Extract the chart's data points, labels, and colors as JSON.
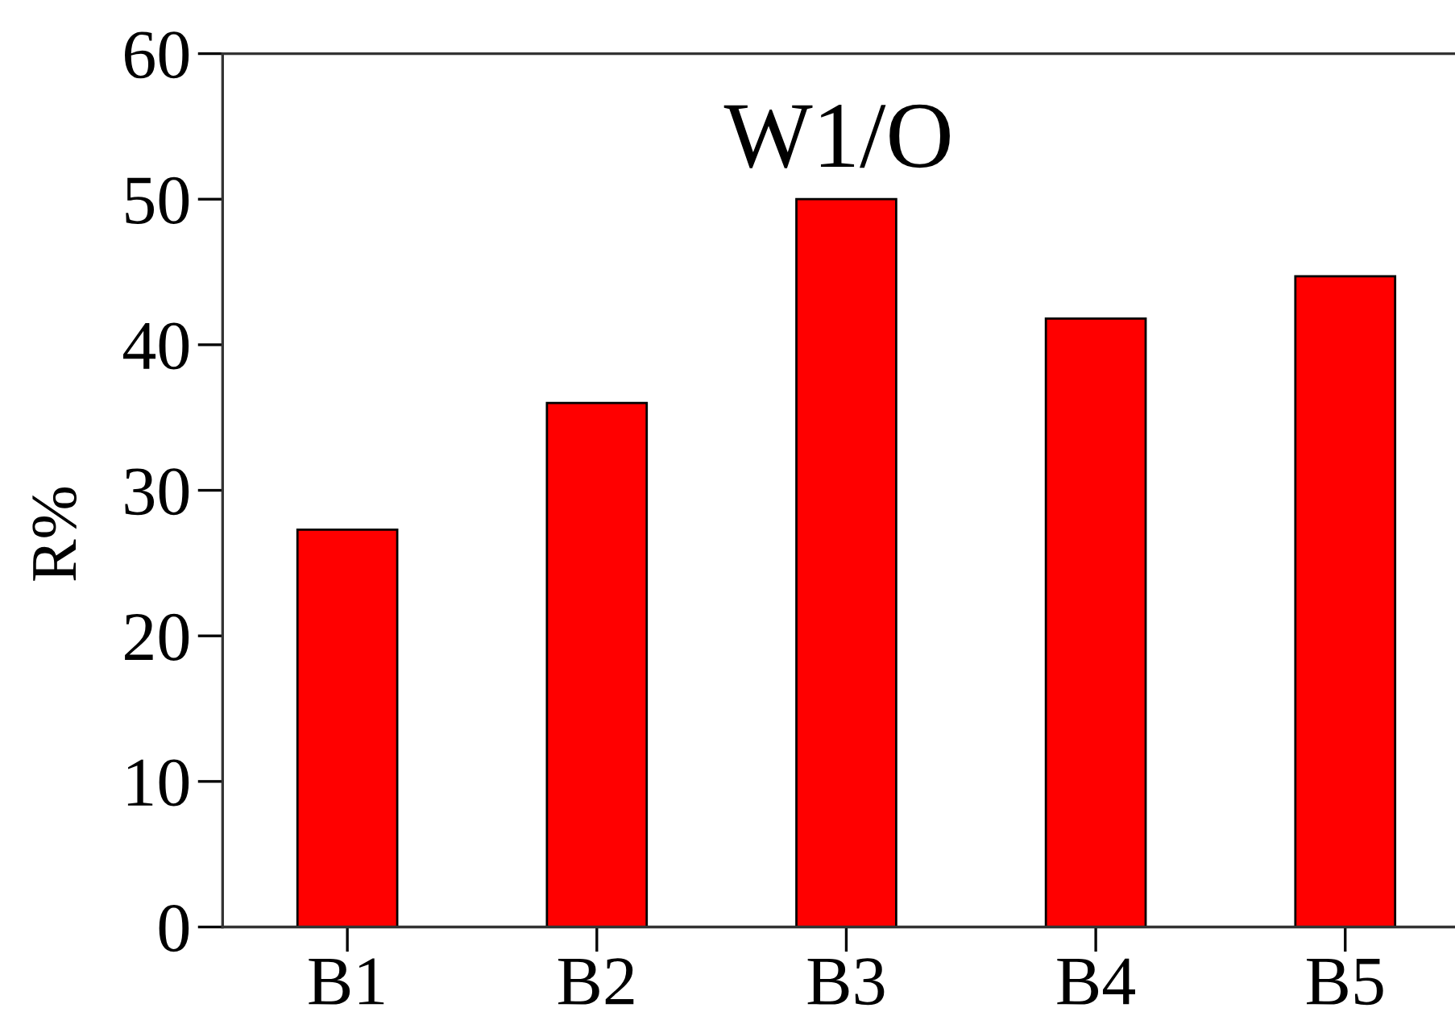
{
  "chart_data": {
    "type": "bar",
    "title": "W1/O",
    "ylabel": "R%",
    "categories": [
      "B1",
      "B2",
      "B3",
      "B4",
      "B5"
    ],
    "values": [
      27.3,
      36.0,
      50.0,
      41.8,
      44.7
    ],
    "color": "#ff0000",
    "ylim": [
      0,
      60
    ],
    "yticks": [
      0,
      10,
      20,
      30,
      40,
      50,
      60
    ]
  }
}
